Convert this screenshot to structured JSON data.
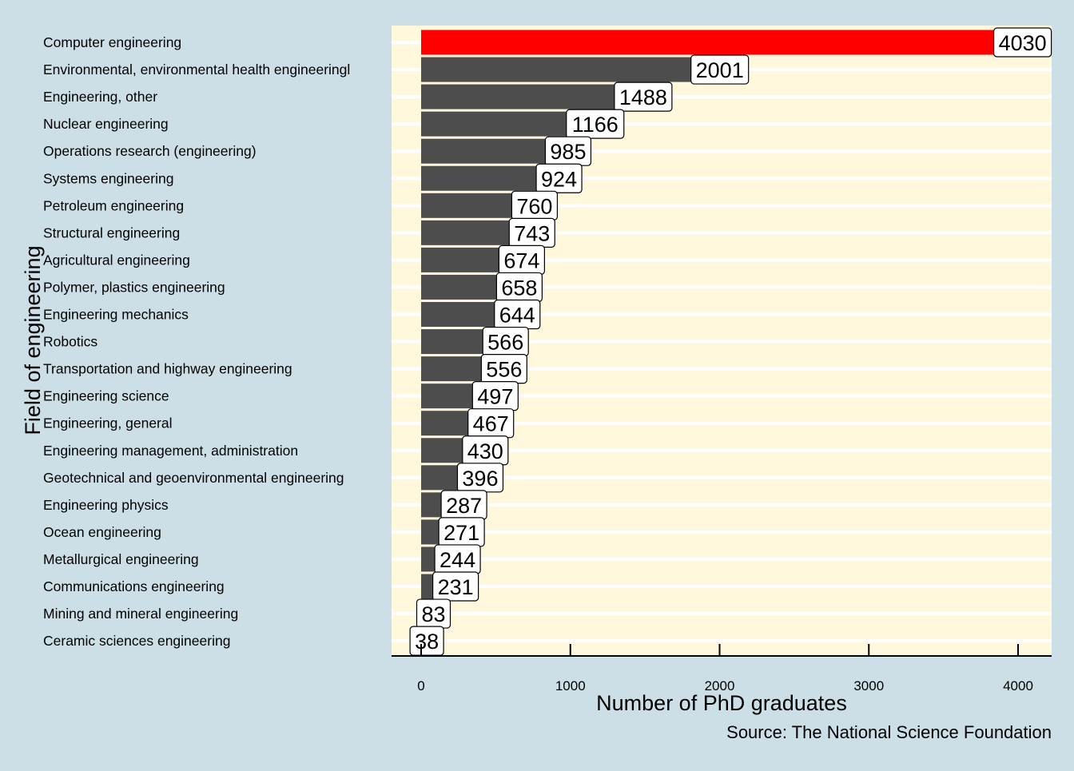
{
  "chart_data": {
    "type": "bar",
    "orientation": "horizontal",
    "title": "",
    "xlabel": "Number of PhD graduates",
    "ylabel": "Field of engineering",
    "caption": "Source: The National Science Foundation",
    "xlim": [
      0,
      4200
    ],
    "xticks": [
      0,
      1000,
      2000,
      3000,
      4000
    ],
    "xtick_labels": [
      "0",
      "1000",
      "2000",
      "3000",
      "4000"
    ],
    "grid": "horizontal lines only",
    "legend": "none",
    "categories": [
      "Computer engineering",
      "Environmental, environmental health engineeringl",
      "Engineering, other",
      "Nuclear engineering",
      "Operations research (engineering)",
      "Systems engineering",
      "Petroleum engineering",
      "Structural engineering",
      "Agricultural engineering",
      "Polymer, plastics engineering",
      "Engineering mechanics",
      "Robotics",
      "Transportation and highway engineering",
      "Engineering science",
      "Engineering, general",
      "Engineering management, administration",
      "Geotechnical and geoenvironmental engineering",
      "Engineering physics",
      "Ocean engineering",
      "Metallurgical engineering",
      "Communications engineering",
      "Mining and mineral engineering",
      "Ceramic sciences engineering"
    ],
    "values": [
      4030,
      2001,
      1488,
      1166,
      985,
      924,
      760,
      743,
      674,
      658,
      644,
      566,
      556,
      497,
      467,
      430,
      396,
      287,
      271,
      244,
      231,
      83,
      38
    ],
    "data_labels": [
      "4030",
      "2001",
      "1488",
      "1166",
      "985",
      "924",
      "760",
      "743",
      "674",
      "658",
      "644",
      "566",
      "556",
      "497",
      "467",
      "430",
      "396",
      "287",
      "271",
      "244",
      "231",
      "83",
      "38"
    ],
    "highlight_index": 0,
    "colors": {
      "background": "#cddfe6",
      "panel": "#fff8dc",
      "gridline": "#ffffff",
      "bar": "#4d4d4d",
      "highlight": "#ff0000",
      "label_fill": "#ffffff",
      "text": "#000000"
    }
  }
}
